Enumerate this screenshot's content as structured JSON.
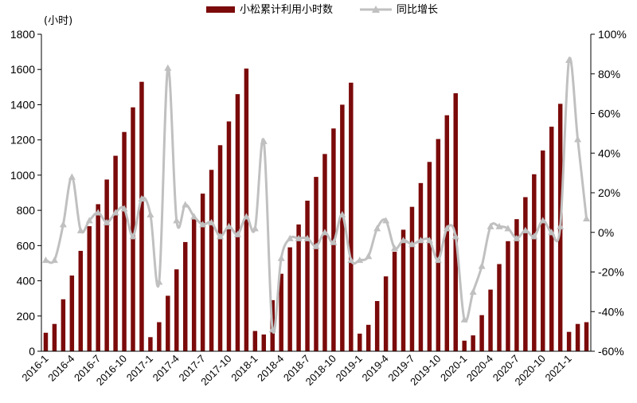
{
  "chart_data": {
    "type": "bar",
    "ylabel_left": "(小时)",
    "ylim_left": [
      0,
      1800
    ],
    "ylim_right": [
      -60,
      100
    ],
    "yticks_left": [
      "0",
      "200",
      "400",
      "600",
      "800",
      "1000",
      "1200",
      "1400",
      "1600",
      "1800"
    ],
    "yticks_right": [
      "-60%",
      "-40%",
      "-20%",
      "0%",
      "20%",
      "40%",
      "60%",
      "80%",
      "100%"
    ],
    "legend_position": "top",
    "categories": [
      "2016-1",
      "2016-2",
      "2016-3",
      "2016-4",
      "2016-5",
      "2016-6",
      "2016-7",
      "2016-8",
      "2016-9",
      "2016-10",
      "2016-11",
      "2016-12",
      "2017-1",
      "2017-2",
      "2017-3",
      "2017-4",
      "2017-5",
      "2017-6",
      "2017-7",
      "2017-8",
      "2017-9",
      "2017-10",
      "2017-11",
      "2017-12",
      "2018-1",
      "2018-2",
      "2018-3",
      "2018-4",
      "2018-5",
      "2018-6",
      "2018-7",
      "2018-8",
      "2018-9",
      "2018-10",
      "2018-11",
      "2018-12",
      "2019-1",
      "2019-2",
      "2019-3",
      "2019-4",
      "2019-5",
      "2019-6",
      "2019-7",
      "2019-8",
      "2019-9",
      "2019-10",
      "2019-11",
      "2019-12",
      "2020-1",
      "2020-2",
      "2020-3",
      "2020-4",
      "2020-5",
      "2020-6",
      "2020-7",
      "2020-8",
      "2020-9",
      "2020-10",
      "2020-11",
      "2020-12",
      "2021-1",
      "2021-2",
      "2021-3"
    ],
    "x_tick_labels_shown": [
      "2016-1",
      "2016-4",
      "2016-7",
      "2016-10",
      "2017-1",
      "2017-4",
      "2017-7",
      "2017-10",
      "2018-1",
      "2018-4",
      "2018-7",
      "2018-10",
      "2019-1",
      "2019-4",
      "2019-7",
      "2019-10",
      "2020-1",
      "2020-4",
      "2020-7",
      "2020-10",
      "2021-1"
    ],
    "series": [
      {
        "name": "小松累计利用小时数",
        "type": "bar",
        "axis": "left",
        "color": "#7b0a0a",
        "values": [
          105,
          155,
          295,
          430,
          570,
          710,
          835,
          975,
          1110,
          1245,
          1385,
          1530,
          80,
          165,
          315,
          465,
          620,
          755,
          895,
          1030,
          1170,
          1305,
          1460,
          1605,
          115,
          95,
          290,
          440,
          590,
          720,
          855,
          990,
          1120,
          1265,
          1400,
          1525,
          100,
          150,
          285,
          425,
          565,
          690,
          820,
          955,
          1075,
          1205,
          1340,
          1465,
          60,
          90,
          205,
          350,
          495,
          625,
          750,
          875,
          1005,
          1140,
          1275,
          1405,
          110,
          155,
          165
        ]
      },
      {
        "name": "同比增长",
        "type": "line",
        "axis": "right",
        "color": "#c0c0c0",
        "unit": "%",
        "values": [
          -14,
          -14,
          4,
          28,
          1,
          6,
          10,
          5,
          10,
          12,
          -2,
          17,
          9,
          -25,
          83,
          6,
          14,
          8,
          4,
          5,
          -2,
          3,
          -1,
          8,
          2,
          46,
          -49,
          -13,
          -3,
          -3,
          -3,
          -7,
          0,
          -5,
          9,
          -14,
          -14,
          -12,
          2,
          6,
          -8,
          -4,
          -6,
          -4,
          -4,
          -14,
          2,
          -2,
          -44,
          -30,
          -17,
          3,
          3,
          2,
          -3,
          1,
          -2,
          6,
          0,
          3,
          87,
          47,
          7
        ]
      }
    ]
  }
}
